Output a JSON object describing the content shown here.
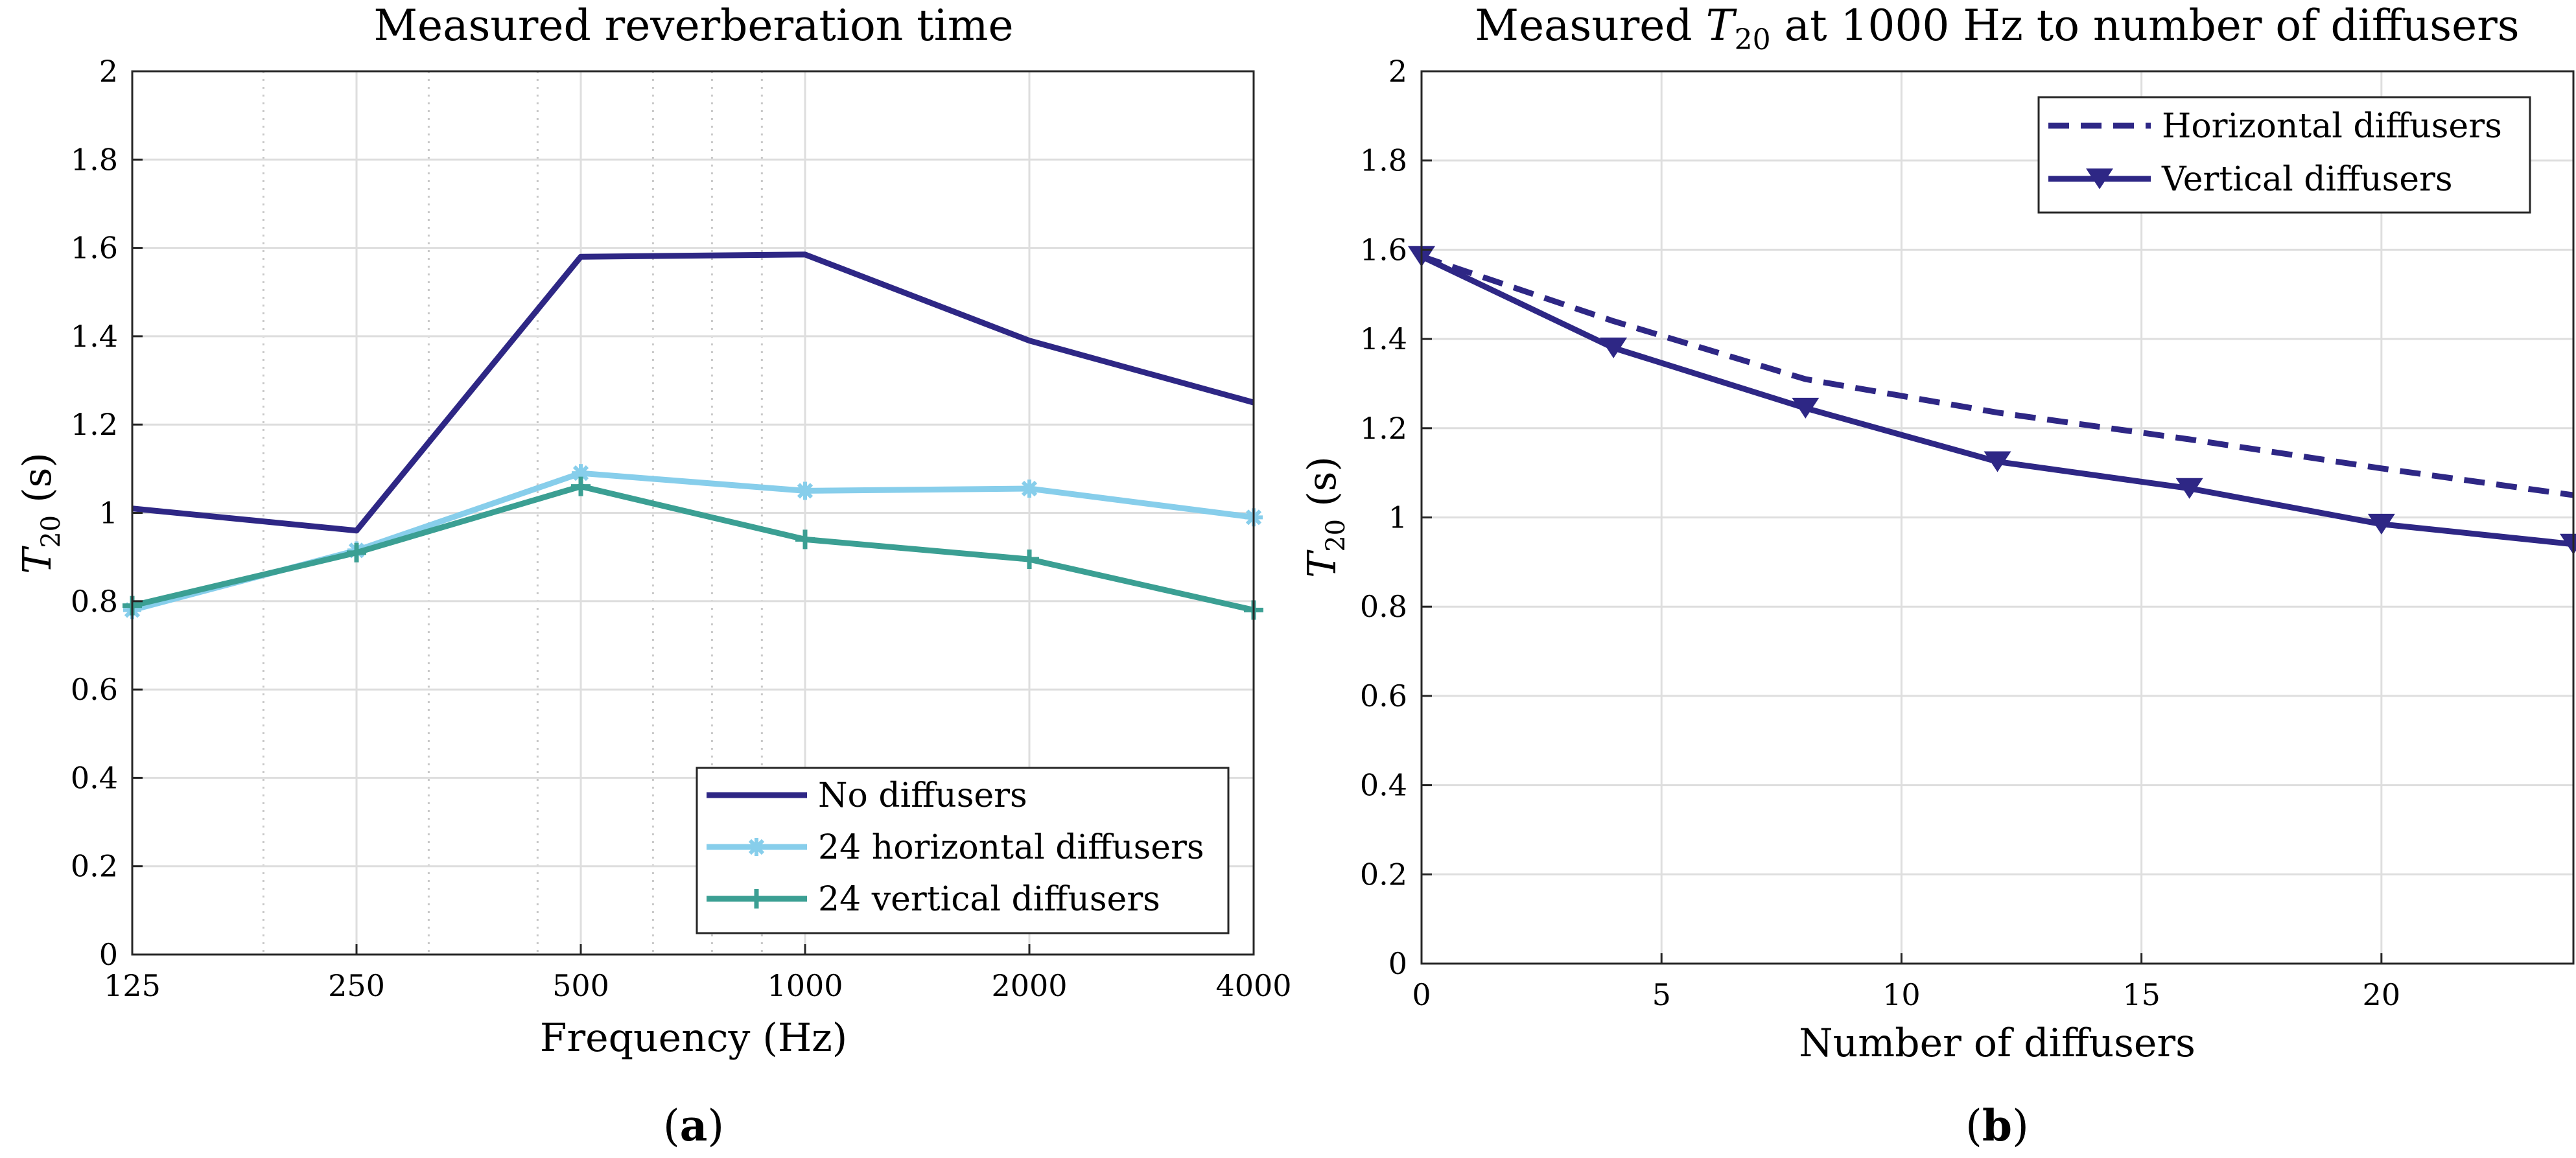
{
  "chart_data": [
    {
      "type": "line",
      "title": "Measured reverberation time",
      "xlabel": "Frequency (Hz)",
      "ylabel_main": "T",
      "ylabel_sub": "20",
      "ylabel_unit": " (s)",
      "xscale": "log2",
      "x": [
        125,
        250,
        500,
        1000,
        2000,
        4000
      ],
      "x_tick_labels": [
        "125",
        "250",
        "500",
        "1000",
        "2000",
        "4000"
      ],
      "x_minor_ticks": [
        187.5,
        312.5,
        437.5,
        625,
        750,
        875
      ],
      "xlim": [
        125,
        4000
      ],
      "ylim": [
        0,
        2
      ],
      "y_ticks": [
        0,
        0.2,
        0.4,
        0.6,
        0.8,
        1,
        1.2,
        1.4,
        1.6,
        1.8,
        2
      ],
      "y_tick_labels": [
        "0",
        "0.2",
        "0.4",
        "0.6",
        "0.8",
        "1",
        "1.2",
        "1.4",
        "1.6",
        "1.8",
        "2"
      ],
      "grid": true,
      "legend_position": "bottom-right",
      "series": [
        {
          "name": "No diffusers",
          "color": "#2e2785",
          "marker": "none",
          "dash": "solid",
          "values": [
            1.01,
            0.96,
            1.58,
            1.585,
            1.39,
            1.25
          ]
        },
        {
          "name": "24 horizontal diffusers",
          "color": "#87ceeb",
          "marker": "asterisk",
          "dash": "solid",
          "values": [
            0.78,
            0.915,
            1.09,
            1.05,
            1.055,
            0.99
          ]
        },
        {
          "name": "24 vertical diffusers",
          "color": "#3b9f93",
          "marker": "plus",
          "dash": "solid",
          "values": [
            0.79,
            0.91,
            1.06,
            0.94,
            0.895,
            0.78
          ]
        }
      ],
      "caption_letter": "a"
    },
    {
      "type": "line",
      "title_pre": "Measured ",
      "title_var": "T",
      "title_sub": "20",
      "title_post": " at 1000 Hz to number of diffusers",
      "xlabel": "Number of diffusers",
      "ylabel_main": "T",
      "ylabel_sub": "20",
      "ylabel_unit": " (s)",
      "xscale": "linear",
      "xlim": [
        0,
        24
      ],
      "x_ticks": [
        0,
        5,
        10,
        15,
        20
      ],
      "x_tick_labels": [
        "0",
        "5",
        "10",
        "15",
        "20"
      ],
      "ylim": [
        0,
        2
      ],
      "y_ticks": [
        0,
        0.2,
        0.4,
        0.6,
        0.8,
        1,
        1.2,
        1.4,
        1.6,
        1.8,
        2
      ],
      "y_tick_labels": [
        "0",
        "0.2",
        "0.4",
        "0.6",
        "0.8",
        "1",
        "1.2",
        "1.4",
        "1.6",
        "1.8",
        "2"
      ],
      "grid": true,
      "legend_position": "top-right",
      "series": [
        {
          "name": "Horizontal diffusers",
          "color": "#2e2785",
          "marker": "none",
          "dash": "dashed",
          "x": [
            0,
            4,
            8,
            12,
            16,
            20,
            24
          ],
          "values": [
            1.585,
            1.44,
            1.31,
            1.235,
            1.175,
            1.11,
            1.05
          ]
        },
        {
          "name": "Vertical diffusers",
          "color": "#2e2785",
          "marker": "triangle-down",
          "dash": "solid",
          "x": [
            0,
            4,
            8,
            12,
            16,
            20,
            24
          ],
          "values": [
            1.585,
            1.38,
            1.245,
            1.125,
            1.065,
            0.985,
            0.94
          ]
        }
      ],
      "caption_letter": "b"
    }
  ]
}
